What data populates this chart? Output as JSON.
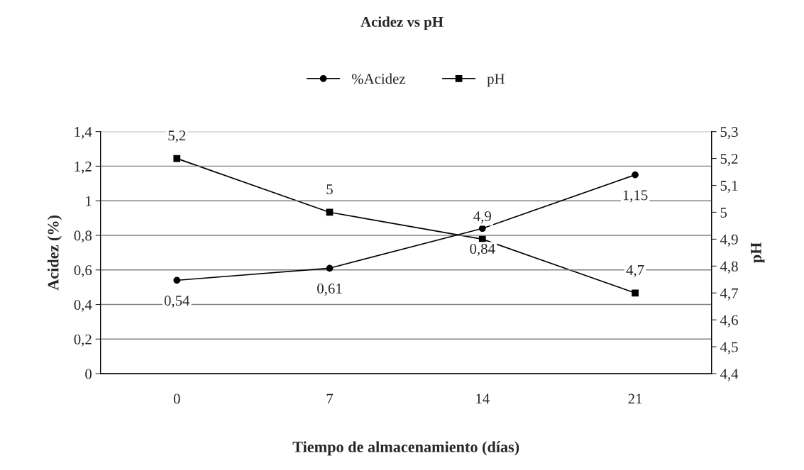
{
  "chart_data": {
    "type": "line",
    "title": "Acidez vs pH",
    "xlabel": "Tiempo de almacenamiento (días)",
    "ylabel": "Acidez (%)",
    "y2label": "pH",
    "categories": [
      "0",
      "7",
      "14",
      "21"
    ],
    "series": [
      {
        "name": "%Acidez",
        "color": "#000000",
        "marker": "circle",
        "values": [
          0.54,
          0.61,
          0.84,
          1.15
        ],
        "value_labels": [
          "0,54",
          "0,61",
          "0,84",
          "1,15"
        ]
      },
      {
        "name": "pH",
        "color": "#000000",
        "marker": "square",
        "axis": "y2",
        "values": [
          5.2,
          5.0,
          4.9,
          4.7
        ],
        "value_labels": [
          "5,2",
          "5",
          "4,9",
          "4,7"
        ]
      }
    ],
    "ylim": [
      0,
      1.4
    ],
    "yticks": [
      0,
      {
        "value": 0.2,
        "label": "0,2"
      },
      {
        "value": 0.4,
        "label": "0,4"
      },
      {
        "value": 0.6,
        "label": "0,6"
      },
      {
        "value": 0.8,
        "label": "0,8"
      },
      1,
      {
        "value": 1.2,
        "label": "1,2"
      },
      {
        "value": 1.4,
        "label": "1,4"
      }
    ],
    "y2lim": [
      4.4,
      5.3
    ],
    "y2ticks": [
      {
        "value": 4.4,
        "label": "4,4"
      },
      {
        "value": 4.5,
        "label": "4,5"
      },
      {
        "value": 4.6,
        "label": "4,6"
      },
      {
        "value": 4.7,
        "label": "4,7"
      },
      {
        "value": 4.8,
        "label": "4,8"
      },
      {
        "value": 4.9,
        "label": "4,9"
      },
      5,
      {
        "value": 5.1,
        "label": "5,1"
      },
      {
        "value": 5.2,
        "label": "5,2"
      },
      {
        "value": 5.3,
        "label": "5,3"
      }
    ],
    "grid": "y",
    "legend": "top",
    "line_style": "solid"
  }
}
